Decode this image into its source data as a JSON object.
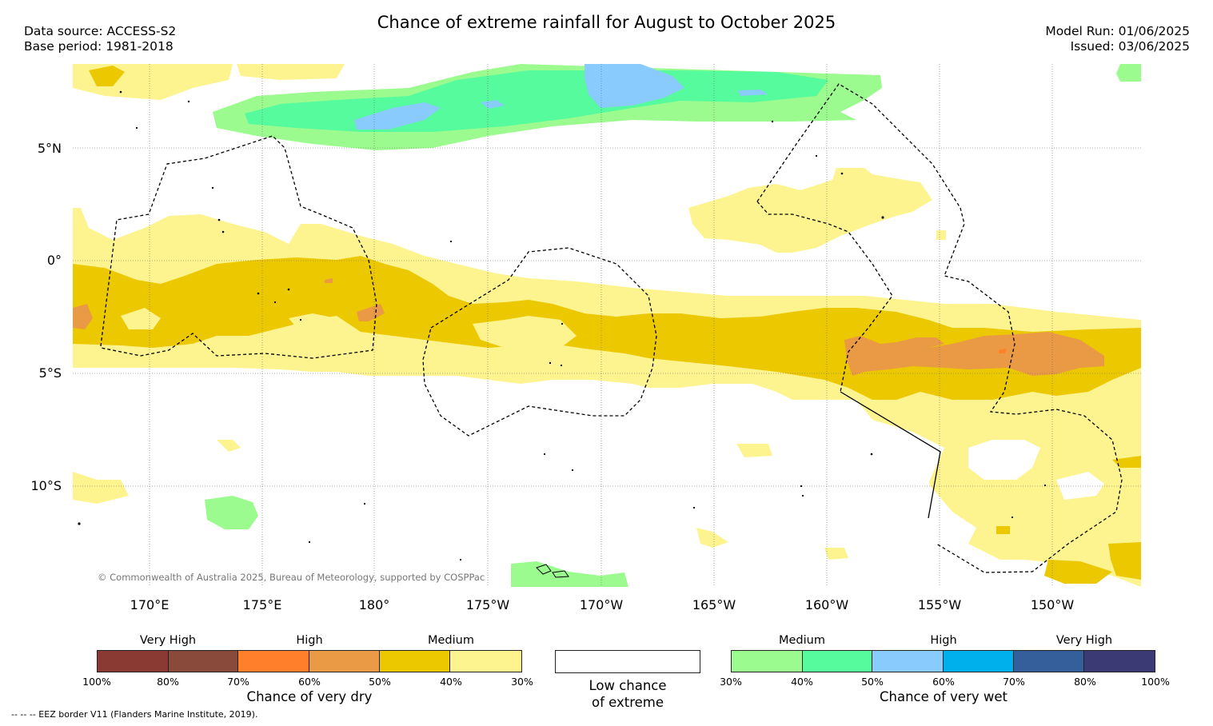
{
  "title": "Chance of extreme rainfall for August to October 2025",
  "meta": {
    "data_source": "Data source: ACCESS-S2",
    "base_period": "Base period: 1981-2018",
    "model_run": "Model Run: 01/06/2025",
    "issued": "Issued: 03/06/2025"
  },
  "map": {
    "lat_labels": [
      "5°N",
      "0°",
      "5°S",
      "10°S"
    ],
    "lon_labels": [
      "170°E",
      "175°E",
      "180°",
      "175°W",
      "170°W",
      "165°W",
      "160°W",
      "155°W",
      "150°W"
    ],
    "copyright": "© Commonwealth of Australia 2025, Bureau of Meteorology, supported by COSPPac",
    "colors": {
      "dry_high_40": "#ecc800",
      "dry_med_30": "#fdf48f",
      "dry_high_50": "#ea9a45",
      "dry_60": "#ff7f2a",
      "wet_30": "#9cfb8f",
      "wet_40": "#55fb9c",
      "wet_50": "#88cbfc",
      "wet_60": "#00b0ec"
    }
  },
  "legend": {
    "dry": {
      "levels": [
        "Very High",
        "High",
        "Medium"
      ],
      "colors": [
        "#8b3a33",
        "#8a4a3b",
        "#ff7f2a",
        "#ea9a45",
        "#ecc800",
        "#fdf48f"
      ],
      "ticks": [
        "100%",
        "80%",
        "70%",
        "60%",
        "50%",
        "40%",
        "30%"
      ],
      "title": "Chance of very dry"
    },
    "low": {
      "title_line1": "Low chance",
      "title_line2": "of extreme"
    },
    "wet": {
      "levels": [
        "Medium",
        "High",
        "Very High"
      ],
      "colors": [
        "#9cfb8f",
        "#55fb9c",
        "#88cbfc",
        "#00b0ec",
        "#355f9a",
        "#3c3a75"
      ],
      "ticks": [
        "30%",
        "40%",
        "50%",
        "60%",
        "70%",
        "80%",
        "100%"
      ],
      "title": "Chance of very wet"
    }
  },
  "footer": "--  --  -- EEZ border V11 (Flanders Marine Institute, 2019)."
}
